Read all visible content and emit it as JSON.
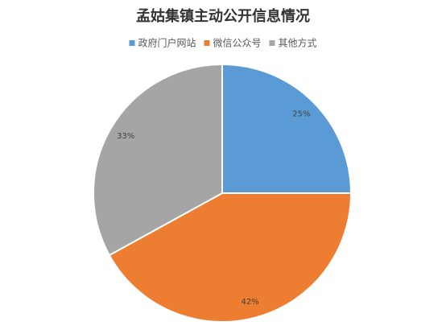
{
  "chart_data": {
    "type": "pie",
    "title": "孟姑集镇主动公开信息情况",
    "categories": [
      "政府门户网站",
      "微信公众号",
      "其他方式"
    ],
    "values": [
      25,
      42,
      33
    ],
    "value_labels": [
      "25%",
      "42%",
      "33%"
    ],
    "colors": [
      "#5b9bd5",
      "#ed7d31",
      "#a5a5a5"
    ],
    "legend": "top"
  }
}
